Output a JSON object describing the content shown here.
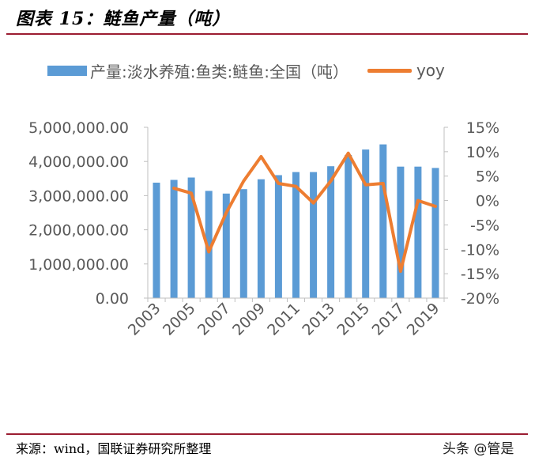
{
  "figure": {
    "title": "图表 15：鲢鱼产量（吨）",
    "source": "来源：wind，国联证券研究所整理",
    "watermark": "头条 @管是"
  },
  "colors": {
    "bar": "#5b9bd5",
    "line": "#ed7d31",
    "rule": "#9b1c31"
  },
  "chart_data": {
    "type": "bar",
    "title": "",
    "categories": [
      "2003",
      "2004",
      "2005",
      "2006",
      "2007",
      "2008",
      "2009",
      "2010",
      "2011",
      "2012",
      "2013",
      "2014",
      "2015",
      "2016",
      "2017",
      "2018",
      "2019"
    ],
    "x_tick_labels": [
      "2003",
      "2005",
      "2007",
      "2009",
      "2011",
      "2013",
      "2015",
      "2017",
      "2019"
    ],
    "series": [
      {
        "name": "产量:淡水养殖:鱼类:鲢鱼:全国（吨）",
        "kind": "bar",
        "axis": "left",
        "values": [
          3380000,
          3460000,
          3530000,
          3140000,
          3060000,
          3190000,
          3480000,
          3600000,
          3690000,
          3690000,
          3860000,
          4190000,
          4350000,
          4500000,
          3850000,
          3850000,
          3810000
        ]
      },
      {
        "name": "yoy",
        "kind": "line",
        "axis": "right",
        "values": [
          null,
          2.5,
          1.5,
          -10.5,
          -2.5,
          4.0,
          9.0,
          3.5,
          2.9,
          -0.5,
          4.0,
          9.7,
          3.2,
          3.5,
          -14.5,
          0.0,
          -1.2
        ]
      }
    ],
    "y_left": {
      "min": 0,
      "max": 5000000,
      "ticks": [
        0,
        1000000,
        2000000,
        3000000,
        4000000,
        5000000
      ],
      "tick_labels": [
        "0.00",
        "1,000,000.00",
        "2,000,000.00",
        "3,000,000.00",
        "4,000,000.00",
        "5,000,000.00"
      ]
    },
    "y_right": {
      "min": -20,
      "max": 15,
      "ticks": [
        -20,
        -15,
        -10,
        -5,
        0,
        5,
        10,
        15
      ],
      "tick_labels": [
        "-20%",
        "-15%",
        "-10%",
        "-5%",
        "0%",
        "5%",
        "10%",
        "15%"
      ]
    },
    "grid": false,
    "legend_position": "top"
  }
}
